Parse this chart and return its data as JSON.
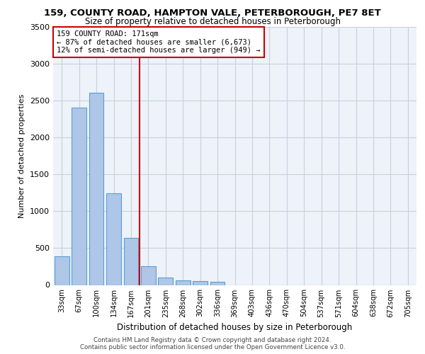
{
  "title_line1": "159, COUNTY ROAD, HAMPTON VALE, PETERBOROUGH, PE7 8ET",
  "title_line2": "Size of property relative to detached houses in Peterborough",
  "xlabel": "Distribution of detached houses by size in Peterborough",
  "ylabel": "Number of detached properties",
  "footer_line1": "Contains HM Land Registry data © Crown copyright and database right 2024.",
  "footer_line2": "Contains public sector information licensed under the Open Government Licence v3.0.",
  "categories": [
    "33sqm",
    "67sqm",
    "100sqm",
    "134sqm",
    "167sqm",
    "201sqm",
    "235sqm",
    "268sqm",
    "302sqm",
    "336sqm",
    "369sqm",
    "403sqm",
    "436sqm",
    "470sqm",
    "504sqm",
    "537sqm",
    "571sqm",
    "604sqm",
    "638sqm",
    "672sqm",
    "705sqm"
  ],
  "values": [
    390,
    2400,
    2600,
    1240,
    640,
    255,
    100,
    60,
    55,
    45,
    0,
    0,
    0,
    0,
    0,
    0,
    0,
    0,
    0,
    0,
    0
  ],
  "bar_color": "#aec6e8",
  "bar_edge_color": "#5a9fd4",
  "annotation_text": "159 COUNTY ROAD: 171sqm\n← 87% of detached houses are smaller (6,673)\n12% of semi-detached houses are larger (949) →",
  "vline_x": 4.5,
  "vline_color": "#cc0000",
  "annotation_box_edge_color": "#cc0000",
  "background_color": "#eef2f9",
  "grid_color": "#c8cfe0",
  "ylim": [
    0,
    3500
  ],
  "yticks": [
    0,
    500,
    1000,
    1500,
    2000,
    2500,
    3000,
    3500
  ]
}
